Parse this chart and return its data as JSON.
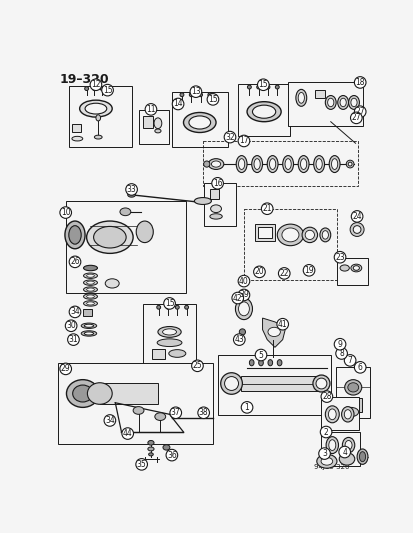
{
  "page_label": "19–320",
  "bg_color": "#f5f5f5",
  "line_color": "#1a1a1a",
  "figsize": [
    4.14,
    5.33
  ],
  "dpi": 100,
  "watermark": "94J19 320"
}
